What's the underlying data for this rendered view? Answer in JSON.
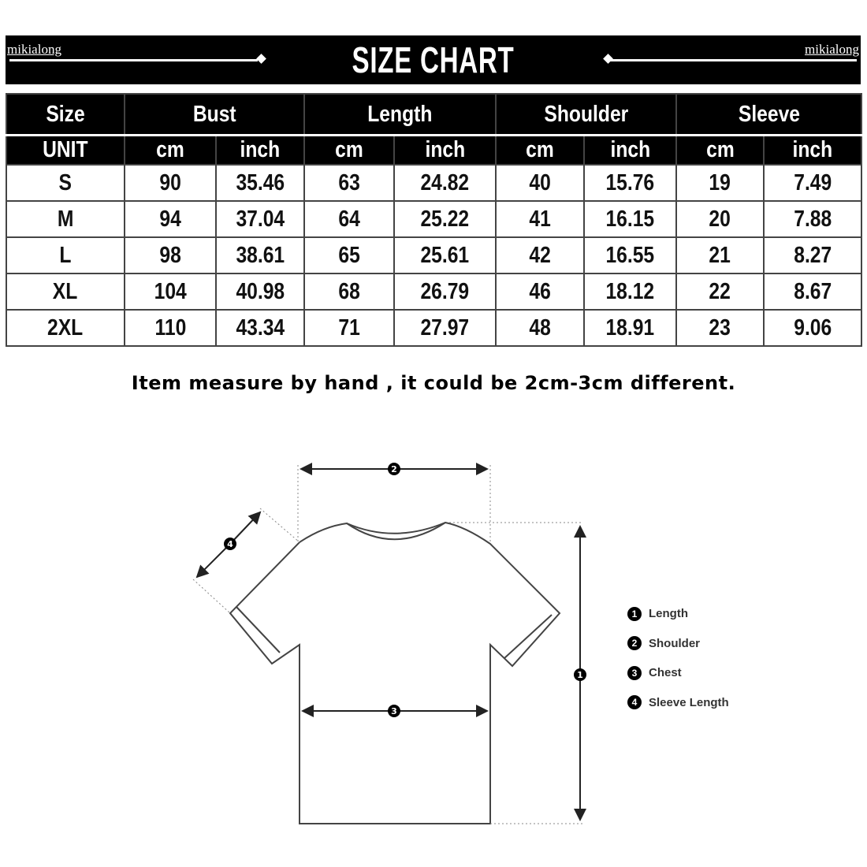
{
  "banner": {
    "title": "SIZE CHART",
    "brand": "mikialong"
  },
  "table": {
    "groups": [
      "Size",
      "Bust",
      "Length",
      "Shoulder",
      "Sleeve"
    ],
    "units": [
      "UNIT",
      "cm",
      "inch",
      "cm",
      "inch",
      "cm",
      "inch",
      "cm",
      "inch"
    ],
    "rows": [
      [
        "S",
        "90",
        "35.46",
        "63",
        "24.82",
        "40",
        "15.76",
        "19",
        "7.49"
      ],
      [
        "M",
        "94",
        "37.04",
        "64",
        "25.22",
        "41",
        "16.15",
        "20",
        "7.88"
      ],
      [
        "L",
        "98",
        "38.61",
        "65",
        "25.61",
        "42",
        "16.55",
        "21",
        "8.27"
      ],
      [
        "XL",
        "104",
        "40.98",
        "68",
        "26.79",
        "46",
        "18.12",
        "22",
        "8.67"
      ],
      [
        "2XL",
        "110",
        "43.34",
        "71",
        "27.97",
        "48",
        "18.91",
        "23",
        "9.06"
      ]
    ]
  },
  "note": "Item measure by hand , it could be 2cm-3cm different.",
  "diagram": {
    "legend": [
      {
        "num": "1",
        "label": "Length"
      },
      {
        "num": "2",
        "label": "Shoulder"
      },
      {
        "num": "3",
        "label": "Chest"
      },
      {
        "num": "4",
        "label": "Sleeve Length"
      }
    ]
  }
}
